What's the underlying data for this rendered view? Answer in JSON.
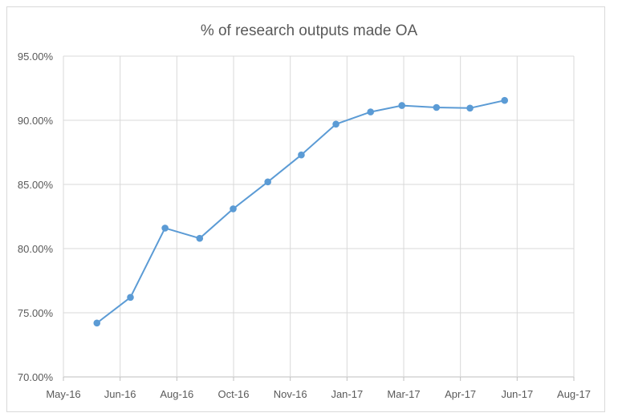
{
  "chart_data": {
    "type": "line",
    "title": "% of research outputs made OA",
    "xlabel": "",
    "ylabel": "",
    "x_ticks": [
      "May-16",
      "Jun-16",
      "Aug-16",
      "Oct-16",
      "Nov-16",
      "Jan-17",
      "Mar-17",
      "Apr-17",
      "Jun-17",
      "Aug-17"
    ],
    "y_ticks": [
      "70.00%",
      "75.00%",
      "80.00%",
      "85.00%",
      "90.00%",
      "95.00%"
    ],
    "ylim": [
      70,
      95
    ],
    "xlim": [
      "2016-05-01",
      "2017-08-01"
    ],
    "grid": true,
    "legend": "none",
    "series": [
      {
        "color": "#5b9bd5",
        "points": [
          {
            "x": "2016-05-31",
            "y": 74.2
          },
          {
            "x": "2016-06-30",
            "y": 76.2
          },
          {
            "x": "2016-07-31",
            "y": 81.6
          },
          {
            "x": "2016-08-31",
            "y": 80.8
          },
          {
            "x": "2016-09-30",
            "y": 83.1
          },
          {
            "x": "2016-10-31",
            "y": 85.2
          },
          {
            "x": "2016-11-30",
            "y": 87.3
          },
          {
            "x": "2016-12-31",
            "y": 89.7
          },
          {
            "x": "2017-01-31",
            "y": 90.65
          },
          {
            "x": "2017-02-28",
            "y": 91.15
          },
          {
            "x": "2017-03-31",
            "y": 91.0
          },
          {
            "x": "2017-04-30",
            "y": 90.95
          },
          {
            "x": "2017-05-31",
            "y": 91.55
          }
        ]
      }
    ]
  }
}
